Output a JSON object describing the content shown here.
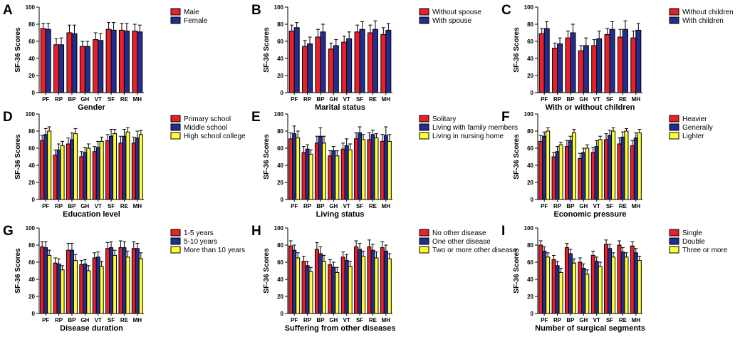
{
  "colors": {
    "red": "#e8202a",
    "blue": "#222e8f",
    "yellow": "#ffff33",
    "axis": "#000000"
  },
  "chart_data": [
    {
      "letter": "A",
      "type": "bar",
      "xlabel": "Gender",
      "ylabel": "SF-36 Scores",
      "ylim": [
        0,
        100
      ],
      "yticks": [
        "0",
        "20",
        "40",
        "60",
        "80",
        "100"
      ],
      "legend": "top-right",
      "categories": [
        "PF",
        "RP",
        "BP",
        "GH",
        "VT",
        "SF",
        "RE",
        "MH"
      ],
      "series": [
        {
          "name": "Male",
          "color": "red",
          "values": [
            75,
            56,
            70,
            54,
            62,
            74,
            73,
            72
          ],
          "errors": [
            6,
            7,
            9,
            6,
            8,
            8,
            8,
            8
          ]
        },
        {
          "name": "Female",
          "color": "blue",
          "values": [
            74,
            56,
            69,
            54,
            61,
            73,
            72,
            71
          ],
          "errors": [
            7,
            8,
            10,
            6,
            8,
            9,
            9,
            8
          ]
        }
      ]
    },
    {
      "letter": "B",
      "type": "bar",
      "xlabel": "Marital status",
      "ylabel": "SF-36 Scores",
      "ylim": [
        0,
        100
      ],
      "yticks": [
        "0",
        "20",
        "40",
        "60",
        "80",
        "100"
      ],
      "legend": "top-right",
      "categories": [
        "PF",
        "RP",
        "BP",
        "GH",
        "VT",
        "SF",
        "RE",
        "MH"
      ],
      "series": [
        {
          "name": "Without spouse",
          "color": "red",
          "values": [
            72,
            54,
            65,
            51,
            59,
            71,
            70,
            68
          ],
          "errors": [
            7,
            7,
            9,
            7,
            7,
            8,
            9,
            8
          ]
        },
        {
          "name": "With spouse",
          "color": "blue",
          "values": [
            76,
            57,
            71,
            55,
            63,
            74,
            74,
            73
          ],
          "errors": [
            6,
            8,
            9,
            7,
            8,
            9,
            10,
            8
          ]
        }
      ]
    },
    {
      "letter": "C",
      "type": "bar",
      "xlabel": "With or without children",
      "ylabel": "SF-36 Scores",
      "ylim": [
        0,
        100
      ],
      "yticks": [
        "0",
        "20",
        "40",
        "60",
        "80",
        "100"
      ],
      "legend": "top-right",
      "categories": [
        "PF",
        "RP",
        "BP",
        "GH",
        "VT",
        "SF",
        "RE",
        "MH"
      ],
      "series": [
        {
          "name": "Without children",
          "color": "red",
          "values": [
            69,
            52,
            64,
            49,
            55,
            68,
            65,
            64
          ],
          "errors": [
            6,
            6,
            8,
            6,
            7,
            7,
            9,
            8
          ]
        },
        {
          "name": "With children",
          "color": "blue",
          "values": [
            75,
            57,
            70,
            55,
            63,
            74,
            74,
            73
          ],
          "errors": [
            8,
            7,
            10,
            9,
            9,
            9,
            10,
            8
          ]
        }
      ]
    },
    {
      "letter": "D",
      "type": "bar",
      "xlabel": "Education level",
      "ylabel": "SF-36 Scores",
      "ylim": [
        0,
        100
      ],
      "yticks": [
        "0",
        "20",
        "40",
        "60",
        "80",
        "100"
      ],
      "legend": "top-right",
      "categories": [
        "PF",
        "RP",
        "BP",
        "GH",
        "VT",
        "SF",
        "RE",
        "MH"
      ],
      "series": [
        {
          "name": "Primary school",
          "color": "red",
          "values": [
            69,
            52,
            65,
            50,
            56,
            69,
            66,
            66
          ],
          "errors": [
            6,
            6,
            7,
            6,
            6,
            7,
            8,
            7
          ]
        },
        {
          "name": "Middle school",
          "color": "blue",
          "values": [
            76,
            58,
            70,
            55,
            61,
            74,
            74,
            72
          ],
          "errors": [
            7,
            7,
            8,
            6,
            7,
            8,
            8,
            8
          ]
        },
        {
          "name": "High school college",
          "color": "yellow",
          "values": [
            80,
            63,
            77,
            60,
            68,
            77,
            79,
            76
          ],
          "errors": [
            5,
            5,
            6,
            5,
            5,
            5,
            5,
            5
          ]
        }
      ]
    },
    {
      "letter": "E",
      "type": "bar",
      "xlabel": "Living status",
      "ylabel": "SF-36 Scores",
      "ylim": [
        0,
        100
      ],
      "yticks": [
        "0",
        "20",
        "40",
        "60",
        "80",
        "100"
      ],
      "legend": "top-right",
      "categories": [
        "PF",
        "RP",
        "BP",
        "GH",
        "VT",
        "SF",
        "RE",
        "MH"
      ],
      "series": [
        {
          "name": "Solitary",
          "color": "red",
          "values": [
            71,
            55,
            66,
            51,
            59,
            71,
            70,
            68
          ],
          "errors": [
            7,
            7,
            8,
            6,
            7,
            7,
            8,
            8
          ]
        },
        {
          "name": "Living with family members",
          "color": "blue",
          "values": [
            77,
            59,
            74,
            57,
            63,
            78,
            76,
            75
          ],
          "errors": [
            9,
            5,
            10,
            5,
            8,
            7,
            5,
            10
          ]
        },
        {
          "name": "Living in nursing home",
          "color": "yellow",
          "values": [
            72,
            53,
            66,
            51,
            58,
            70,
            72,
            68
          ],
          "errors": [
            8,
            5,
            8,
            6,
            7,
            6,
            5,
            8
          ]
        }
      ]
    },
    {
      "letter": "F",
      "type": "bar",
      "xlabel": "Economic pressure",
      "ylabel": "SF-36 Scores",
      "ylim": [
        0,
        100
      ],
      "yticks": [
        "0",
        "20",
        "40",
        "60",
        "80",
        "100"
      ],
      "legend": "top-right",
      "categories": [
        "PF",
        "RP",
        "BP",
        "GH",
        "VT",
        "SF",
        "RE",
        "MH"
      ],
      "series": [
        {
          "name": "Heavier",
          "color": "red",
          "values": [
            68,
            50,
            62,
            48,
            55,
            70,
            65,
            63
          ],
          "errors": [
            7,
            5,
            7,
            6,
            6,
            7,
            7,
            6
          ]
        },
        {
          "name": "Generally",
          "color": "blue",
          "values": [
            74,
            56,
            69,
            55,
            62,
            75,
            73,
            72
          ],
          "errors": [
            5,
            6,
            5,
            5,
            7,
            6,
            6,
            6
          ]
        },
        {
          "name": "Lighter",
          "color": "yellow",
          "values": [
            80,
            64,
            78,
            60,
            70,
            80,
            80,
            78
          ],
          "errors": [
            4,
            3,
            4,
            4,
            4,
            4,
            3,
            4
          ]
        }
      ]
    },
    {
      "letter": "G",
      "type": "bar",
      "xlabel": "Disease duration",
      "ylabel": "SF-36 Scores",
      "ylim": [
        0,
        100
      ],
      "yticks": [
        "0",
        "20",
        "40",
        "60",
        "80",
        "100"
      ],
      "legend": "top-right",
      "categories": [
        "PF",
        "RP",
        "BP",
        "GH",
        "VT",
        "SF",
        "RE",
        "MH"
      ],
      "series": [
        {
          "name": "1-5 years",
          "color": "red",
          "values": [
            78,
            59,
            74,
            57,
            65,
            76,
            77,
            76
          ],
          "errors": [
            6,
            6,
            8,
            5,
            6,
            7,
            8,
            8
          ]
        },
        {
          "name": "5-10 years",
          "color": "blue",
          "values": [
            77,
            58,
            74,
            58,
            66,
            77,
            77,
            76
          ],
          "errors": [
            7,
            6,
            8,
            5,
            6,
            7,
            7,
            6
          ]
        },
        {
          "name": "More than 10 years",
          "color": "yellow",
          "values": [
            68,
            51,
            62,
            50,
            55,
            68,
            66,
            64
          ],
          "errors": [
            6,
            5,
            7,
            6,
            6,
            6,
            7,
            7
          ]
        }
      ]
    },
    {
      "letter": "H",
      "type": "bar",
      "xlabel": "Suffering from other diseases",
      "ylabel": "SF-36 Scores",
      "ylim": [
        0,
        100
      ],
      "yticks": [
        "0",
        "20",
        "40",
        "60",
        "80",
        "100"
      ],
      "legend": "top-right",
      "categories": [
        "PF",
        "RP",
        "BP",
        "GH",
        "VT",
        "SF",
        "RE",
        "MH"
      ],
      "series": [
        {
          "name": "No other disease",
          "color": "red",
          "values": [
            79,
            61,
            75,
            57,
            66,
            78,
            78,
            77
          ],
          "errors": [
            6,
            6,
            8,
            6,
            6,
            7,
            8,
            7
          ]
        },
        {
          "name": "One other disease",
          "color": "blue",
          "values": [
            74,
            56,
            70,
            54,
            62,
            75,
            74,
            73
          ],
          "errors": [
            6,
            5,
            8,
            6,
            7,
            7,
            7,
            7
          ]
        },
        {
          "name": "Two or more other disease",
          "color": "yellow",
          "values": [
            65,
            49,
            61,
            48,
            55,
            67,
            65,
            64
          ],
          "errors": [
            6,
            5,
            7,
            6,
            6,
            6,
            7,
            6
          ]
        }
      ]
    },
    {
      "letter": "I",
      "type": "bar",
      "xlabel": "Number of surgical segments",
      "ylabel": "SF-36 Scores",
      "ylim": [
        0,
        100
      ],
      "yticks": [
        "0",
        "20",
        "40",
        "60",
        "80",
        "100"
      ],
      "legend": "top-right",
      "categories": [
        "PF",
        "RP",
        "BP",
        "GH",
        "VT",
        "SF",
        "RE",
        "MH"
      ],
      "series": [
        {
          "name": "Single",
          "color": "red",
          "values": [
            80,
            63,
            77,
            60,
            68,
            81,
            80,
            79
          ],
          "errors": [
            5,
            5,
            5,
            5,
            5,
            5,
            5,
            5
          ]
        },
        {
          "name": "Double",
          "color": "blue",
          "values": [
            73,
            56,
            70,
            53,
            61,
            76,
            72,
            71
          ],
          "errors": [
            5,
            5,
            5,
            5,
            5,
            5,
            5,
            5
          ]
        },
        {
          "name": "Three or more",
          "color": "yellow",
          "values": [
            66,
            48,
            59,
            46,
            55,
            66,
            66,
            62
          ],
          "errors": [
            5,
            5,
            5,
            5,
            5,
            5,
            5,
            5
          ]
        }
      ]
    }
  ]
}
